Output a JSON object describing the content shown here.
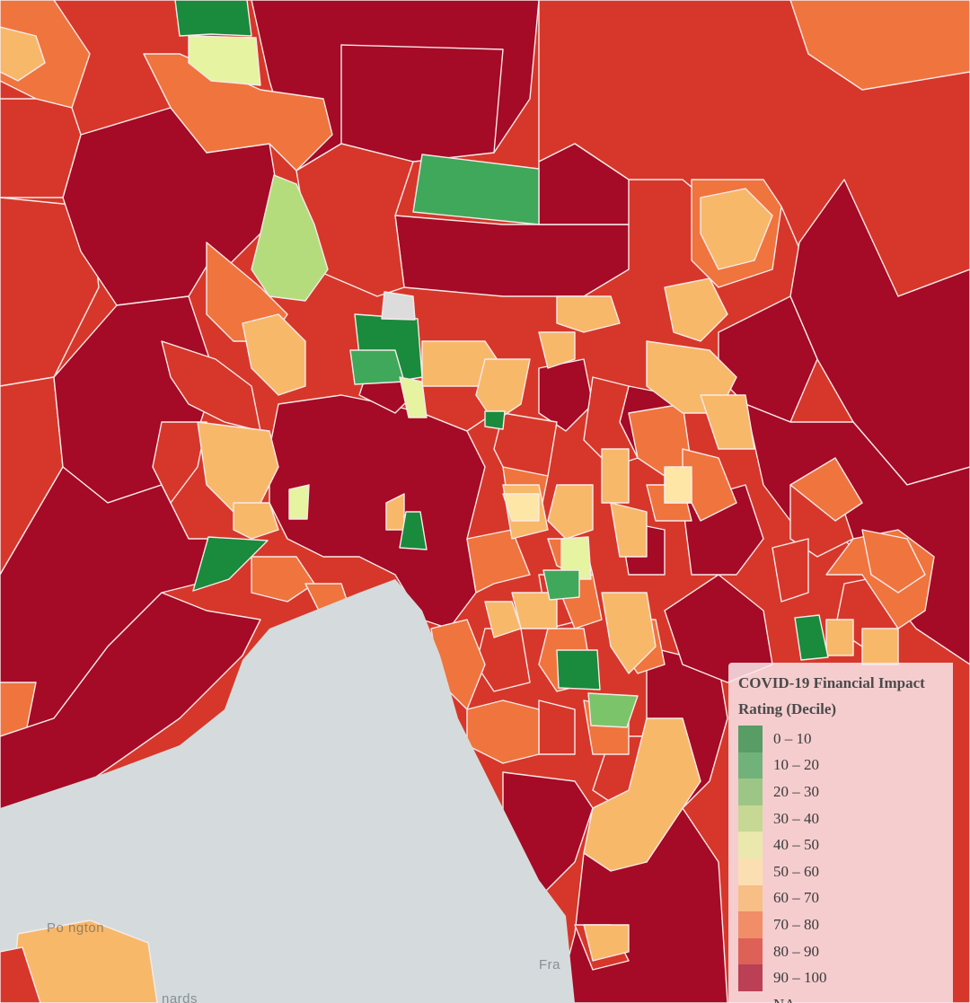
{
  "legend": {
    "title": "COVID-19 Financial Impact Rating (Decile)",
    "items": [
      {
        "label": "0 – 10",
        "color": "#1a8a3c"
      },
      {
        "label": "10 – 20",
        "color": "#3fa85a"
      },
      {
        "label": "20 – 30",
        "color": "#7cc46a"
      },
      {
        "label": "30 – 40",
        "color": "#b4dc7c"
      },
      {
        "label": "40 – 50",
        "color": "#e6f3a0"
      },
      {
        "label": "50 – 60",
        "color": "#fde6a6"
      },
      {
        "label": "60 – 70",
        "color": "#f8b86a"
      },
      {
        "label": "70 – 80",
        "color": "#f0743e"
      },
      {
        "label": "80 – 90",
        "color": "#d6372a"
      },
      {
        "label": "90 – 100",
        "color": "#a50a26"
      },
      {
        "label": "NA",
        "color": "#dcdcdc"
      }
    ]
  },
  "basemap_labels": [
    {
      "key": "port-phillip",
      "text": "Po   ngton"
    },
    {
      "key": "frankston",
      "text": "Fra"
    },
    {
      "key": "st-leonards",
      "text": "nards"
    }
  ],
  "colors": {
    "water": "#d5dbdc",
    "border": "#f6eaea"
  }
}
